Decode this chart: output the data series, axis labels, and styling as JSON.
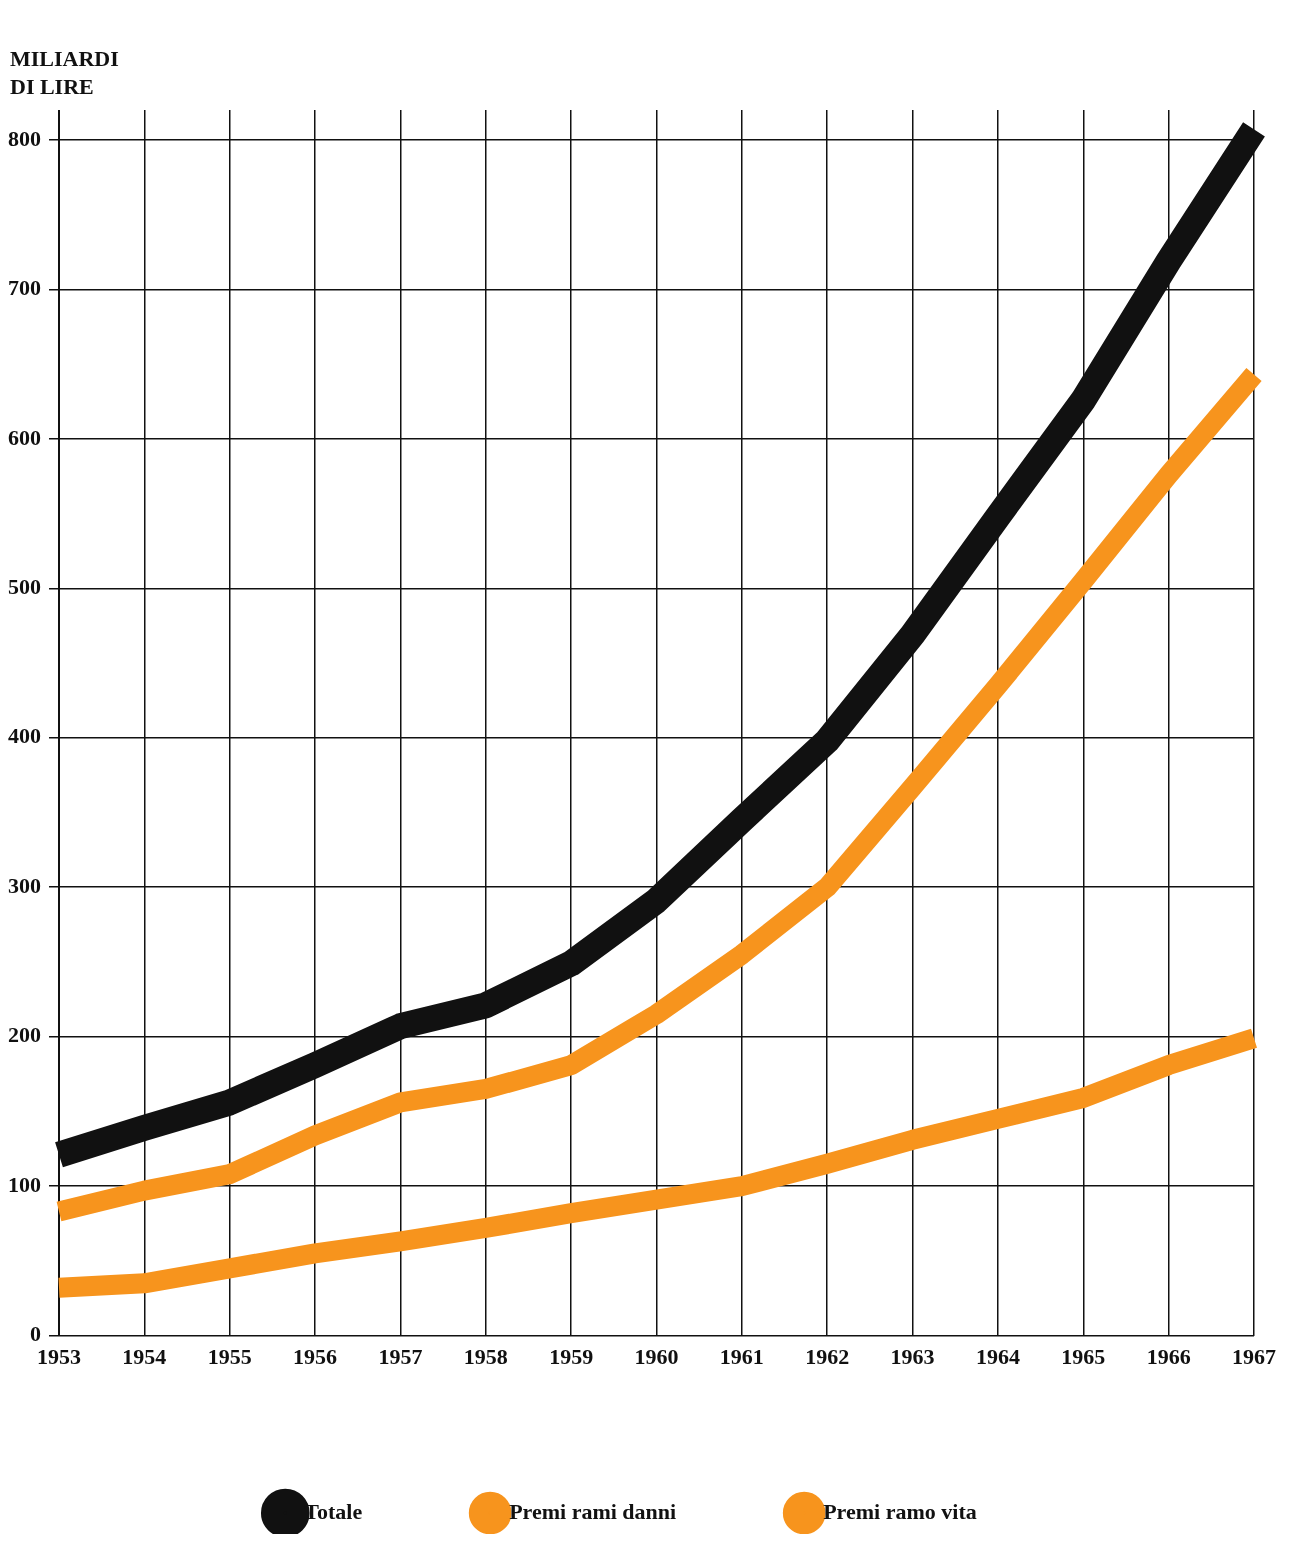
{
  "chart_data": {
    "type": "line",
    "ylabel": "MILIARDI DI LIRE",
    "categories": [
      "1953",
      "1954",
      "1955",
      "1956",
      "1957",
      "1958",
      "1959",
      "1960",
      "1961",
      "1962",
      "1963",
      "1964",
      "1965",
      "1966",
      "1967"
    ],
    "series": [
      {
        "name": "Totale",
        "color": "#111111",
        "values": [
          121,
          139,
          156,
          181,
          207,
          221,
          249,
          291,
          345,
          398,
          469,
          548,
          626,
          719,
          807
        ]
      },
      {
        "name": "Premi rami danni",
        "color": "#f7941d",
        "values": [
          83,
          97,
          108,
          134,
          156,
          165,
          181,
          215,
          255,
          300,
          367,
          435,
          505,
          576,
          643
        ]
      },
      {
        "name": "Premi ramo vita",
        "color": "#f7941d",
        "values": [
          32,
          35,
          45,
          55,
          63,
          72,
          82,
          91,
          100,
          115,
          131,
          145,
          159,
          181,
          199
        ]
      }
    ],
    "ylim": [
      0,
      820
    ],
    "yticks": [
      0,
      100,
      200,
      300,
      400,
      500,
      600,
      700,
      800
    ],
    "grid": true,
    "legend": "bottom",
    "marker": "none",
    "line_style": "solid"
  }
}
